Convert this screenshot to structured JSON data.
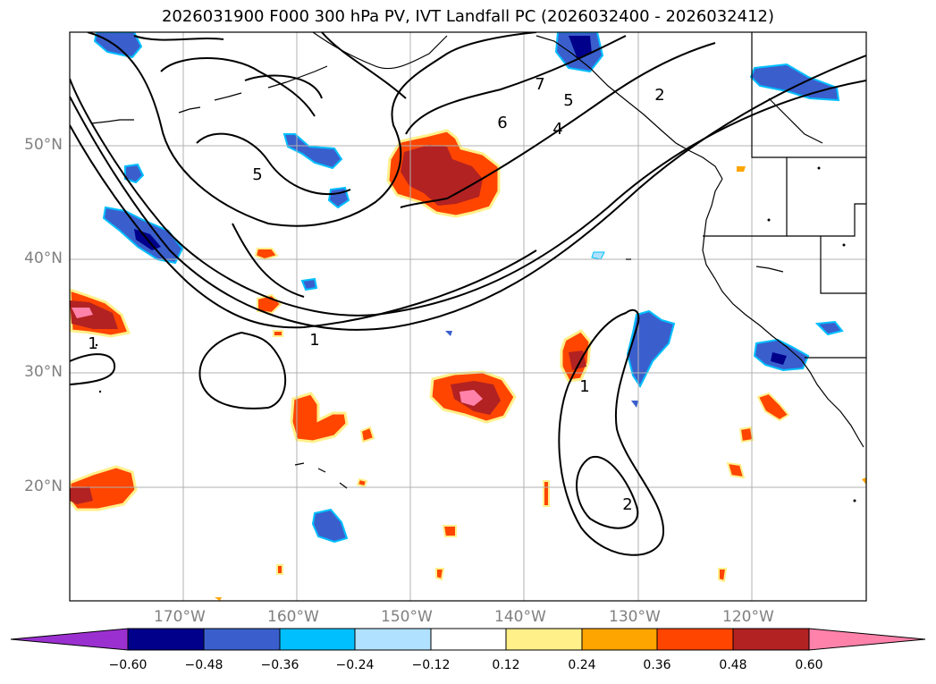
{
  "title": "2026031900 F000 300 hPa PV, IVT Landfall PC (2026032400 - 2026032412)",
  "map": {
    "lon_ticks": [
      "170°W",
      "160°W",
      "150°W",
      "140°W",
      "130°W",
      "120°W"
    ],
    "lat_ticks": [
      "50°N",
      "40°N",
      "30°N",
      "20°N"
    ],
    "contour_labels": [
      "7",
      "6",
      "5",
      "5",
      "4",
      "2",
      "1",
      "1",
      "1",
      "2"
    ]
  },
  "colorbar": {
    "ticks": [
      "−0.60",
      "−0.48",
      "−0.36",
      "−0.24",
      "−0.12",
      "0.12",
      "0.24",
      "0.36",
      "0.48",
      "0.60"
    ],
    "colors": [
      "#9b30d0",
      "#00008b",
      "#3a5fcd",
      "#00bfff",
      "#b0e2ff",
      "#ffffff",
      "#fff08a",
      "#ffa500",
      "#ff4500",
      "#b22222",
      "#ff82ab"
    ]
  }
}
